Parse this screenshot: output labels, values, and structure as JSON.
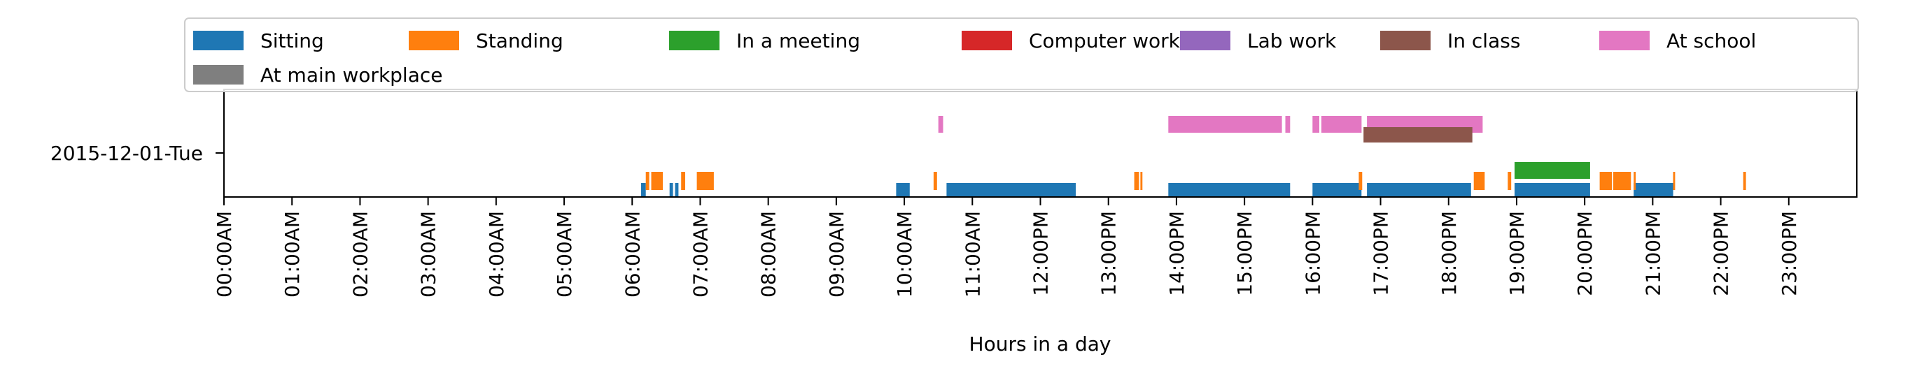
{
  "chart_data": {
    "type": "timeline",
    "title": "",
    "xlabel": "Hours in a day",
    "ylabel": "",
    "y_category": "2015-12-01-Tue",
    "xlim": [
      0,
      24
    ],
    "grid": false,
    "legend_position": "top",
    "x_ticks": [
      {
        "value": 0,
        "label": "00:00AM"
      },
      {
        "value": 1,
        "label": "01:00AM"
      },
      {
        "value": 2,
        "label": "02:00AM"
      },
      {
        "value": 3,
        "label": "03:00AM"
      },
      {
        "value": 4,
        "label": "04:00AM"
      },
      {
        "value": 5,
        "label": "05:00AM"
      },
      {
        "value": 6,
        "label": "06:00AM"
      },
      {
        "value": 7,
        "label": "07:00AM"
      },
      {
        "value": 8,
        "label": "08:00AM"
      },
      {
        "value": 9,
        "label": "09:00AM"
      },
      {
        "value": 10,
        "label": "10:00AM"
      },
      {
        "value": 11,
        "label": "11:00AM"
      },
      {
        "value": 12,
        "label": "12:00PM"
      },
      {
        "value": 13,
        "label": "13:00PM"
      },
      {
        "value": 14,
        "label": "14:00PM"
      },
      {
        "value": 15,
        "label": "15:00PM"
      },
      {
        "value": 16,
        "label": "16:00PM"
      },
      {
        "value": 17,
        "label": "17:00PM"
      },
      {
        "value": 18,
        "label": "18:00PM"
      },
      {
        "value": 19,
        "label": "19:00PM"
      },
      {
        "value": 20,
        "label": "20:00PM"
      },
      {
        "value": 21,
        "label": "21:00PM"
      },
      {
        "value": 22,
        "label": "22:00PM"
      },
      {
        "value": 23,
        "label": "23:00PM"
      }
    ],
    "series": [
      {
        "name": "Sitting",
        "color": "#1f77b4",
        "intervals": [
          [
            6.13,
            6.2
          ],
          [
            6.55,
            6.6
          ],
          [
            6.63,
            6.68
          ],
          [
            9.88,
            10.08
          ],
          [
            10.62,
            12.52
          ],
          [
            13.88,
            15.67
          ],
          [
            16.0,
            16.72
          ],
          [
            16.8,
            18.33
          ],
          [
            18.97,
            20.08
          ],
          [
            20.72,
            21.3
          ]
        ]
      },
      {
        "name": "Standing",
        "color": "#ff7f0e",
        "intervals": [
          [
            6.2,
            6.25
          ],
          [
            6.28,
            6.45
          ],
          [
            6.72,
            6.78
          ],
          [
            6.95,
            7.2
          ],
          [
            10.43,
            10.48
          ],
          [
            13.38,
            13.45
          ],
          [
            13.47,
            13.5
          ],
          [
            16.68,
            16.73
          ],
          [
            18.37,
            18.53
          ],
          [
            18.87,
            18.92
          ],
          [
            20.22,
            20.4
          ],
          [
            20.42,
            20.68
          ],
          [
            20.72,
            20.75
          ],
          [
            21.3,
            21.33
          ],
          [
            22.33,
            22.37
          ]
        ]
      },
      {
        "name": "In a meeting",
        "color": "#2ca02c",
        "intervals": [
          [
            18.97,
            20.08
          ]
        ]
      },
      {
        "name": "Computer work",
        "color": "#d62728",
        "intervals": []
      },
      {
        "name": "Lab work",
        "color": "#9467bd",
        "intervals": []
      },
      {
        "name": "In class",
        "color": "#8c564b",
        "intervals": [
          [
            16.75,
            18.35
          ]
        ]
      },
      {
        "name": "At school",
        "color": "#e377c2",
        "intervals": [
          [
            10.5,
            10.57
          ],
          [
            13.88,
            15.55
          ],
          [
            15.6,
            15.67
          ],
          [
            16.0,
            16.1
          ],
          [
            16.13,
            16.72
          ],
          [
            16.8,
            18.5
          ]
        ]
      },
      {
        "name": "At main workplace",
        "color": "#7f7f7f",
        "intervals": []
      }
    ]
  }
}
